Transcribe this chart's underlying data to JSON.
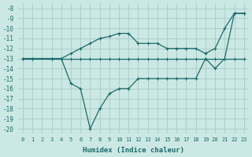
{
  "xlabel": "Humidex (Indice chaleur)",
  "bg_color": "#cce8e4",
  "grid_color": "#aed0cc",
  "line_color": "#1a6b6b",
  "xlim": [
    -0.5,
    23.5
  ],
  "ylim": [
    -20.5,
    -7.5
  ],
  "yticks": [
    -20,
    -19,
    -18,
    -17,
    -16,
    -15,
    -14,
    -13,
    -12,
    -11,
    -10,
    -9,
    -8
  ],
  "xticks": [
    0,
    1,
    2,
    3,
    4,
    5,
    6,
    7,
    8,
    9,
    10,
    11,
    12,
    13,
    14,
    15,
    16,
    17,
    18,
    19,
    20,
    21,
    22,
    23
  ],
  "line1_x": [
    0,
    1,
    3,
    4,
    5,
    6,
    7,
    8,
    9,
    10,
    11,
    12,
    13,
    14,
    15,
    16,
    17,
    18,
    19,
    20,
    21,
    22,
    23
  ],
  "line1_y": [
    -13,
    -13,
    -13,
    -13,
    -13,
    -13,
    -13,
    -13,
    -13,
    -13,
    -13,
    -13,
    -13,
    -13,
    -13,
    -13,
    -13,
    -13,
    -13,
    -13,
    -13,
    -13,
    -13
  ],
  "line2_x": [
    0,
    1,
    3,
    4,
    5,
    6,
    7,
    8,
    9,
    10,
    11,
    12,
    13,
    14,
    15,
    16,
    17,
    18,
    19,
    20,
    21,
    22,
    23
  ],
  "line2_y": [
    -13,
    -13,
    -13,
    -13,
    -15.5,
    -16,
    -20,
    -18,
    -16.5,
    -16,
    -16,
    -15,
    -15,
    -15,
    -15,
    -15,
    -15,
    -15,
    -13,
    -14,
    -13,
    -8.5,
    -8.5
  ],
  "line3_x": [
    4,
    5,
    6,
    7,
    8,
    9,
    10,
    11,
    12,
    13,
    14,
    15,
    16,
    17,
    18,
    19,
    20,
    21,
    22,
    23
  ],
  "line3_y": [
    -13,
    -12.5,
    -12,
    -11.5,
    -11,
    -10.8,
    -10.5,
    -10.5,
    -11.5,
    -11.5,
    -11.5,
    -12,
    -12,
    -12,
    -12,
    -12.5,
    -12,
    -10,
    -8.5,
    -8.5
  ]
}
